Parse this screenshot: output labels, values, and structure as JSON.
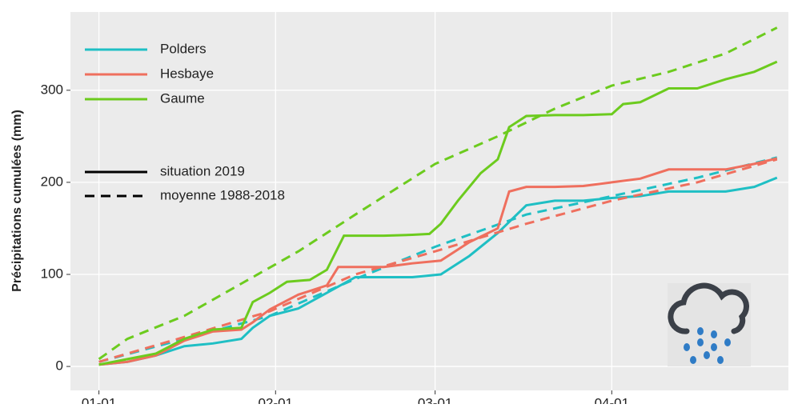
{
  "chart_data": {
    "type": "line",
    "y_label": "Précipitations cumulées (mm)",
    "xlim": [
      -5,
      121
    ],
    "xticks": [
      {
        "value": 0,
        "label": "01-01"
      },
      {
        "value": 31,
        "label": "02-01"
      },
      {
        "value": 59,
        "label": "03-01"
      },
      {
        "value": 90,
        "label": "04-01"
      }
    ],
    "ylim": [
      -26,
      385
    ],
    "yticks": [
      0,
      100,
      200,
      300
    ],
    "grid": true,
    "linetypes": [
      "situation 2019",
      "moyenne 1988-2018"
    ],
    "series": [
      {
        "name": "Polders",
        "color": "#1fbfc4",
        "x": [
          0,
          5,
          10,
          15,
          20,
          25,
          27,
          30,
          35,
          40,
          45,
          50,
          55,
          60,
          65,
          70,
          75,
          80,
          85,
          90,
          95,
          100,
          105,
          110,
          115,
          119
        ],
        "values": [
          2,
          5,
          12,
          22,
          25,
          30,
          42,
          55,
          63,
          80,
          97,
          97,
          97,
          100,
          120,
          145,
          175,
          180,
          180,
          183,
          185,
          190,
          190,
          190,
          195,
          205
        ],
        "avg_x": [
          0,
          15,
          30,
          45,
          59,
          75,
          90,
          105,
          119
        ],
        "avg_values": [
          5,
          30,
          55,
          95,
          130,
          165,
          185,
          205,
          227
        ]
      },
      {
        "name": "Hesbaye",
        "color": "#ef6f5e",
        "x": [
          0,
          5,
          10,
          15,
          20,
          25,
          27,
          30,
          35,
          40,
          42,
          45,
          50,
          55,
          60,
          65,
          70,
          72,
          75,
          80,
          85,
          90,
          95,
          100,
          105,
          110,
          115,
          119
        ],
        "values": [
          2,
          5,
          12,
          28,
          38,
          40,
          48,
          62,
          78,
          88,
          108,
          108,
          108,
          112,
          115,
          135,
          150,
          190,
          195,
          195,
          196,
          200,
          204,
          214,
          214,
          214,
          220,
          226
        ],
        "avg_x": [
          0,
          15,
          30,
          45,
          59,
          75,
          90,
          105,
          119
        ],
        "avg_values": [
          5,
          32,
          60,
          100,
          125,
          155,
          180,
          200,
          225
        ]
      },
      {
        "name": "Gaume",
        "color": "#6ccb1e",
        "x": [
          0,
          5,
          10,
          15,
          20,
          25,
          27,
          30,
          33,
          37,
          40,
          43,
          50,
          55,
          58,
          60,
          63,
          67,
          70,
          72,
          75,
          80,
          85,
          90,
          92,
          95,
          100,
          105,
          110,
          115,
          119
        ],
        "values": [
          2,
          8,
          14,
          30,
          40,
          42,
          70,
          80,
          92,
          94,
          105,
          142,
          142,
          143,
          144,
          155,
          180,
          210,
          225,
          260,
          272,
          273,
          273,
          274,
          285,
          287,
          302,
          302,
          312,
          320,
          331
        ],
        "avg_x": [
          0,
          5,
          15,
          25,
          35,
          45,
          59,
          70,
          80,
          90,
          100,
          110,
          119
        ],
        "avg_values": [
          8,
          30,
          55,
          90,
          125,
          165,
          220,
          250,
          280,
          305,
          320,
          340,
          368
        ]
      }
    ]
  }
}
